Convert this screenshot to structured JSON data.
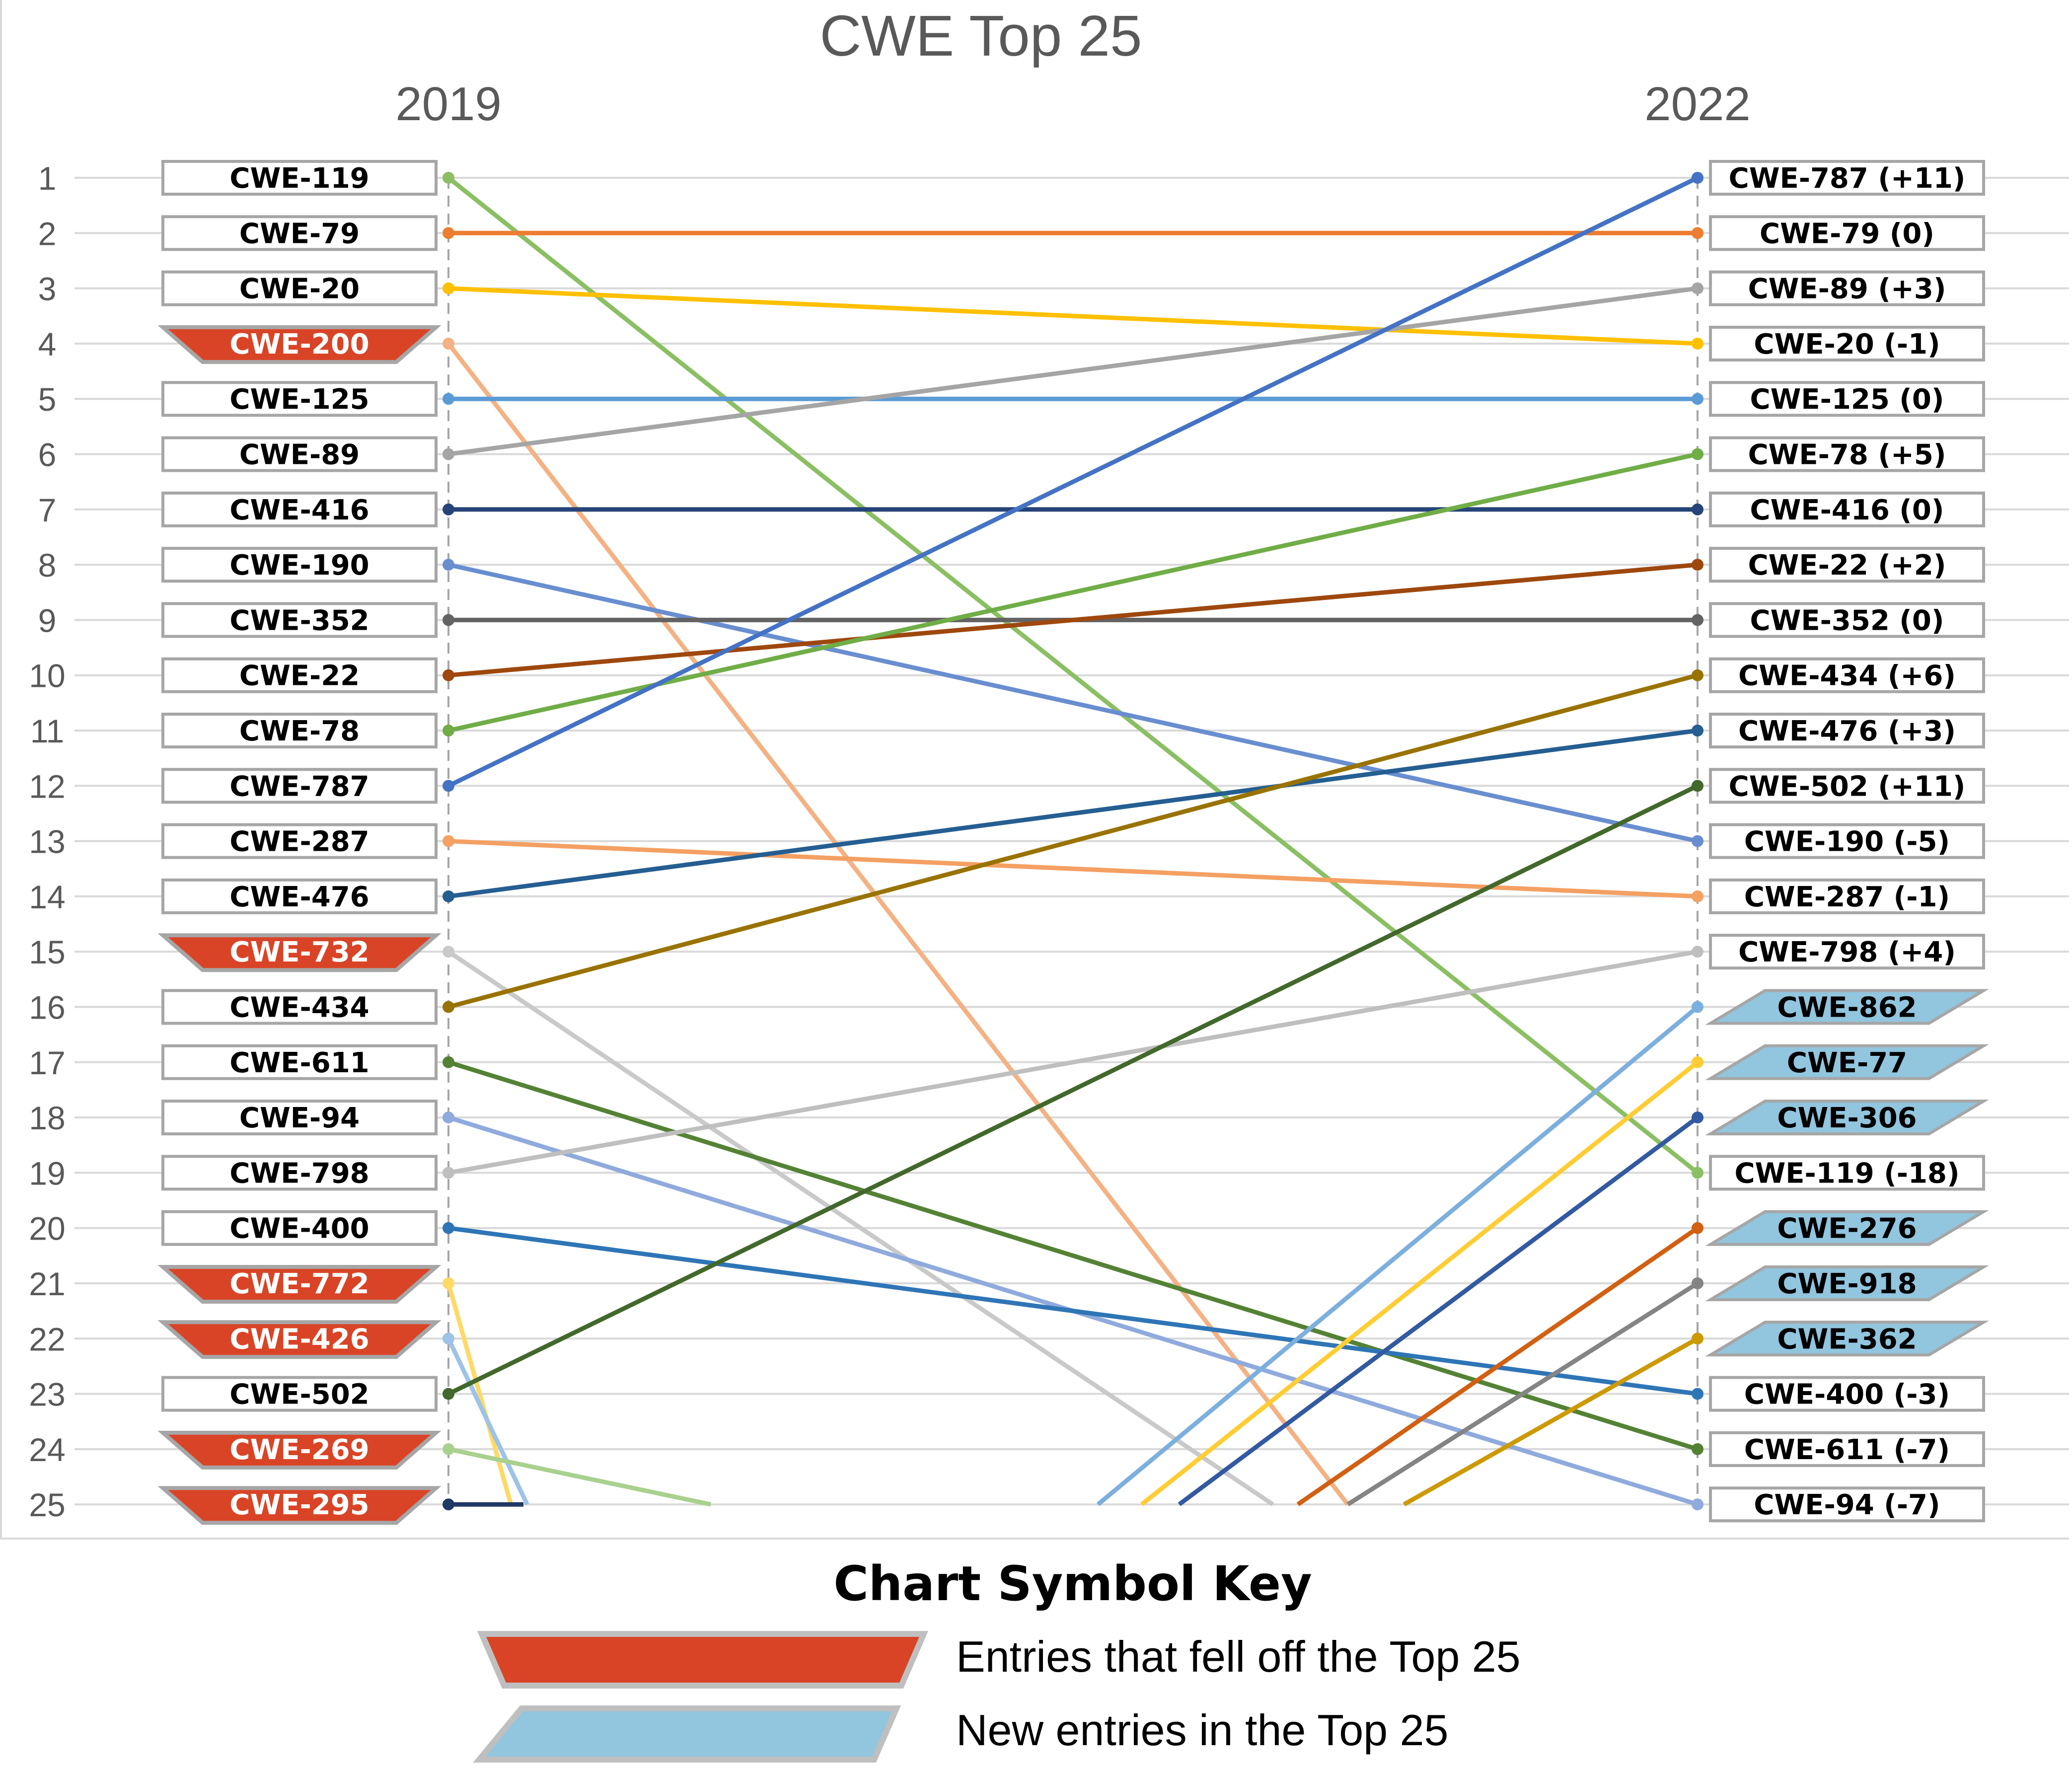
{
  "chart_data": {
    "type": "line",
    "subtype": "slope",
    "title": "CWE Top 25",
    "columns": [
      "2019",
      "2022"
    ],
    "rank_ticks": [
      "1",
      "2",
      "3",
      "4",
      "5",
      "6",
      "7",
      "8",
      "9",
      "10",
      "11",
      "12",
      "13",
      "14",
      "15",
      "16",
      "17",
      "18",
      "19",
      "20",
      "21",
      "22",
      "23",
      "24",
      "25"
    ],
    "ylim": [
      1,
      25
    ],
    "y_inverted": true,
    "grid": true,
    "left_labels": [
      {
        "rank": 1,
        "label": "CWE-119",
        "fell_off": false
      },
      {
        "rank": 2,
        "label": "CWE-79",
        "fell_off": false
      },
      {
        "rank": 3,
        "label": "CWE-20",
        "fell_off": false
      },
      {
        "rank": 4,
        "label": "CWE-200",
        "fell_off": true
      },
      {
        "rank": 5,
        "label": "CWE-125",
        "fell_off": false
      },
      {
        "rank": 6,
        "label": "CWE-89",
        "fell_off": false
      },
      {
        "rank": 7,
        "label": "CWE-416",
        "fell_off": false
      },
      {
        "rank": 8,
        "label": "CWE-190",
        "fell_off": false
      },
      {
        "rank": 9,
        "label": "CWE-352",
        "fell_off": false
      },
      {
        "rank": 10,
        "label": "CWE-22",
        "fell_off": false
      },
      {
        "rank": 11,
        "label": "CWE-78",
        "fell_off": false
      },
      {
        "rank": 12,
        "label": "CWE-787",
        "fell_off": false
      },
      {
        "rank": 13,
        "label": "CWE-287",
        "fell_off": false
      },
      {
        "rank": 14,
        "label": "CWE-476",
        "fell_off": false
      },
      {
        "rank": 15,
        "label": "CWE-732",
        "fell_off": true
      },
      {
        "rank": 16,
        "label": "CWE-434",
        "fell_off": false
      },
      {
        "rank": 17,
        "label": "CWE-611",
        "fell_off": false
      },
      {
        "rank": 18,
        "label": "CWE-94",
        "fell_off": false
      },
      {
        "rank": 19,
        "label": "CWE-798",
        "fell_off": false
      },
      {
        "rank": 20,
        "label": "CWE-400",
        "fell_off": false
      },
      {
        "rank": 21,
        "label": "CWE-772",
        "fell_off": true
      },
      {
        "rank": 22,
        "label": "CWE-426",
        "fell_off": true
      },
      {
        "rank": 23,
        "label": "CWE-502",
        "fell_off": false
      },
      {
        "rank": 24,
        "label": "CWE-269",
        "fell_off": true
      },
      {
        "rank": 25,
        "label": "CWE-295",
        "fell_off": true
      }
    ],
    "right_labels": [
      {
        "rank": 1,
        "label": "CWE-787 (+11)",
        "new_entry": false
      },
      {
        "rank": 2,
        "label": "CWE-79 (0)",
        "new_entry": false
      },
      {
        "rank": 3,
        "label": "CWE-89 (+3)",
        "new_entry": false
      },
      {
        "rank": 4,
        "label": "CWE-20 (-1)",
        "new_entry": false
      },
      {
        "rank": 5,
        "label": "CWE-125 (0)",
        "new_entry": false
      },
      {
        "rank": 6,
        "label": "CWE-78 (+5)",
        "new_entry": false
      },
      {
        "rank": 7,
        "label": "CWE-416 (0)",
        "new_entry": false
      },
      {
        "rank": 8,
        "label": "CWE-22 (+2)",
        "new_entry": false
      },
      {
        "rank": 9,
        "label": "CWE-352 (0)",
        "new_entry": false
      },
      {
        "rank": 10,
        "label": "CWE-434 (+6)",
        "new_entry": false
      },
      {
        "rank": 11,
        "label": "CWE-476 (+3)",
        "new_entry": false
      },
      {
        "rank": 12,
        "label": "CWE-502 (+11)",
        "new_entry": false
      },
      {
        "rank": 13,
        "label": "CWE-190 (-5)",
        "new_entry": false
      },
      {
        "rank": 14,
        "label": "CWE-287 (-1)",
        "new_entry": false
      },
      {
        "rank": 15,
        "label": "CWE-798 (+4)",
        "new_entry": false
      },
      {
        "rank": 16,
        "label": "CWE-862",
        "new_entry": true
      },
      {
        "rank": 17,
        "label": "CWE-77",
        "new_entry": true
      },
      {
        "rank": 18,
        "label": "CWE-306",
        "new_entry": true
      },
      {
        "rank": 19,
        "label": "CWE-119 (-18)",
        "new_entry": false
      },
      {
        "rank": 20,
        "label": "CWE-276",
        "new_entry": true
      },
      {
        "rank": 21,
        "label": "CWE-918",
        "new_entry": true
      },
      {
        "rank": 22,
        "label": "CWE-362",
        "new_entry": true
      },
      {
        "rank": 23,
        "label": "CWE-400 (-3)",
        "new_entry": false
      },
      {
        "rank": 24,
        "label": "CWE-611 (-7)",
        "new_entry": false
      },
      {
        "rank": 25,
        "label": "CWE-94 (-7)",
        "new_entry": false
      }
    ],
    "series": [
      {
        "name": "CWE-119",
        "y2019": 1,
        "y2022": 19,
        "color": "#8bbf63"
      },
      {
        "name": "CWE-79",
        "y2019": 2,
        "y2022": 2,
        "color": "#ed7d31"
      },
      {
        "name": "CWE-20",
        "y2019": 3,
        "y2022": 4,
        "color": "#ffc000"
      },
      {
        "name": "CWE-200",
        "y2019": 4,
        "y2022": null,
        "color": "#f4b183",
        "off_chart_x_2022": 0.72
      },
      {
        "name": "CWE-125",
        "y2019": 5,
        "y2022": 5,
        "color": "#5b9bd5"
      },
      {
        "name": "CWE-89",
        "y2019": 6,
        "y2022": 3,
        "color": "#a5a5a5"
      },
      {
        "name": "CWE-416",
        "y2019": 7,
        "y2022": 7,
        "color": "#264478"
      },
      {
        "name": "CWE-190",
        "y2019": 8,
        "y2022": 13,
        "color": "#698ed0"
      },
      {
        "name": "CWE-352",
        "y2019": 9,
        "y2022": 9,
        "color": "#636363"
      },
      {
        "name": "CWE-22",
        "y2019": 10,
        "y2022": 8,
        "color": "#9e480e"
      },
      {
        "name": "CWE-78",
        "y2019": 11,
        "y2022": 6,
        "color": "#70ad47"
      },
      {
        "name": "CWE-787",
        "y2019": 12,
        "y2022": 1,
        "color": "#4472c4"
      },
      {
        "name": "CWE-287",
        "y2019": 13,
        "y2022": 14,
        "color": "#f4a063"
      },
      {
        "name": "CWE-476",
        "y2019": 14,
        "y2022": 11,
        "color": "#255e91"
      },
      {
        "name": "CWE-732",
        "y2019": 15,
        "y2022": null,
        "color": "#c9c9c9",
        "off_chart_x_2022": 0.66
      },
      {
        "name": "CWE-434",
        "y2019": 16,
        "y2022": 10,
        "color": "#997300"
      },
      {
        "name": "CWE-611",
        "y2019": 17,
        "y2022": 24,
        "color": "#548235"
      },
      {
        "name": "CWE-94",
        "y2019": 18,
        "y2022": 25,
        "color": "#8faadc"
      },
      {
        "name": "CWE-798",
        "y2019": 19,
        "y2022": 15,
        "color": "#bfbfbf"
      },
      {
        "name": "CWE-400",
        "y2019": 20,
        "y2022": 23,
        "color": "#2e75b6"
      },
      {
        "name": "CWE-772",
        "y2019": 21,
        "y2022": null,
        "color": "#ffd966",
        "off_chart_x_2022": 0.05
      },
      {
        "name": "CWE-426",
        "y2019": 22,
        "y2022": null,
        "color": "#9dc3e6",
        "off_chart_x_2022": 0.063
      },
      {
        "name": "CWE-502",
        "y2019": 23,
        "y2022": 12,
        "color": "#43682b"
      },
      {
        "name": "CWE-269",
        "y2019": 24,
        "y2022": null,
        "color": "#a9d18e",
        "off_chart_x_2022": 0.21
      },
      {
        "name": "CWE-295",
        "y2019": 25,
        "y2022": null,
        "color": "#1f3864",
        "off_chart_x_2022": 0.06
      },
      {
        "name": "CWE-862",
        "y2019": null,
        "y2022": 16,
        "color": "#7cafdd",
        "off_chart_x_2019": 0.52
      },
      {
        "name": "CWE-77",
        "y2019": null,
        "y2022": 17,
        "color": "#ffcd33",
        "off_chart_x_2019": 0.555
      },
      {
        "name": "CWE-306",
        "y2019": null,
        "y2022": 18,
        "color": "#335aa1",
        "off_chart_x_2019": 0.585
      },
      {
        "name": "CWE-276",
        "y2019": null,
        "y2022": 20,
        "color": "#d26012",
        "off_chart_x_2019": 0.68
      },
      {
        "name": "CWE-918",
        "y2019": null,
        "y2022": 21,
        "color": "#848484",
        "off_chart_x_2019": 0.72
      },
      {
        "name": "CWE-362",
        "y2019": null,
        "y2022": 22,
        "color": "#cc9a06",
        "off_chart_x_2019": 0.765
      }
    ],
    "legend": {
      "title": "Chart Symbol Key",
      "placement": "bottom-center",
      "items": [
        {
          "label": "Entries that fell off the Top 25",
          "color": "#d94426",
          "shape": "trapezoid"
        },
        {
          "label": "New entries in the Top 25",
          "color": "#92c5de",
          "shape": "parallelogram"
        }
      ]
    }
  },
  "colors": {
    "fell_off_fill": "#d94426",
    "new_entry_fill": "#92c5de",
    "box_border": "#a6a6a6",
    "text_muted": "#595959",
    "grid": "#d9d9d9"
  }
}
